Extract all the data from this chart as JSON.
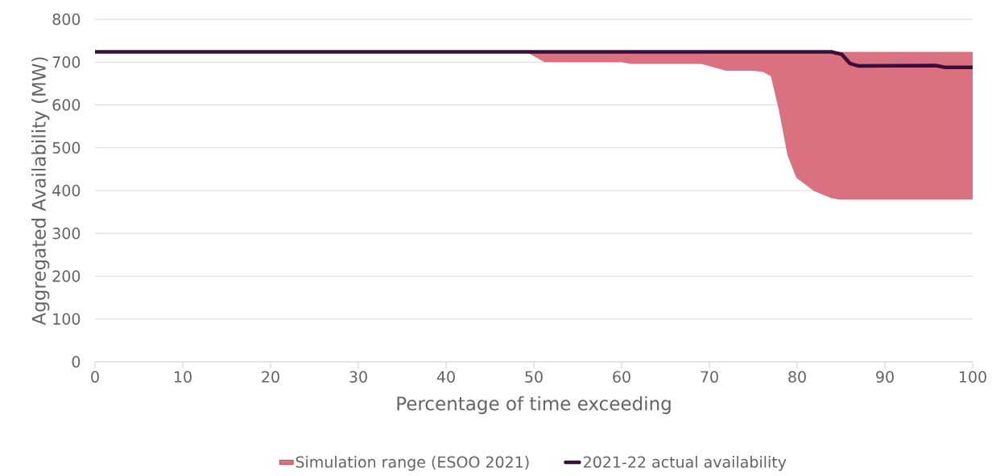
{
  "chart_data": {
    "type": "line",
    "xlabel": "Percentage of time exceeding",
    "ylabel": "Aggregated Availability (MW)",
    "xlim": [
      0,
      100
    ],
    "ylim": [
      0,
      800
    ],
    "xticks": [
      0,
      10,
      20,
      30,
      40,
      50,
      60,
      70,
      80,
      90,
      100
    ],
    "yticks": [
      0,
      100,
      200,
      300,
      400,
      500,
      600,
      700,
      800
    ],
    "grid": "y",
    "legend": "bottom",
    "series": [
      {
        "name": "Simulation range (ESOO 2021)",
        "type": "area",
        "color": "#db7080",
        "x": [
          49.1,
          51.2,
          60,
          61,
          69.1,
          71.9,
          75,
          76.1,
          77,
          77.9,
          78.9,
          79.9,
          81.9,
          83.9,
          84.9,
          100
        ],
        "values": [
          null,
          null,
          null,
          null,
          null,
          null,
          null,
          null,
          null,
          null,
          null,
          null,
          null,
          null,
          null,
          null
        ],
        "upper": [
          724,
          724,
          724,
          724,
          724,
          724,
          724,
          724,
          724,
          724,
          724,
          724,
          724,
          724,
          724,
          724
        ],
        "lower": [
          724,
          700,
          700,
          696,
          696,
          680,
          680,
          677,
          667,
          589,
          482,
          430,
          399,
          382,
          379,
          379
        ]
      },
      {
        "name": "2021-22 actual availability",
        "color": "#361036",
        "x": [
          0,
          83.9,
          85.1,
          86,
          87,
          95.8,
          96.8,
          100
        ],
        "values": [
          724,
          724,
          718,
          697,
          691,
          692,
          688,
          688
        ]
      }
    ]
  }
}
